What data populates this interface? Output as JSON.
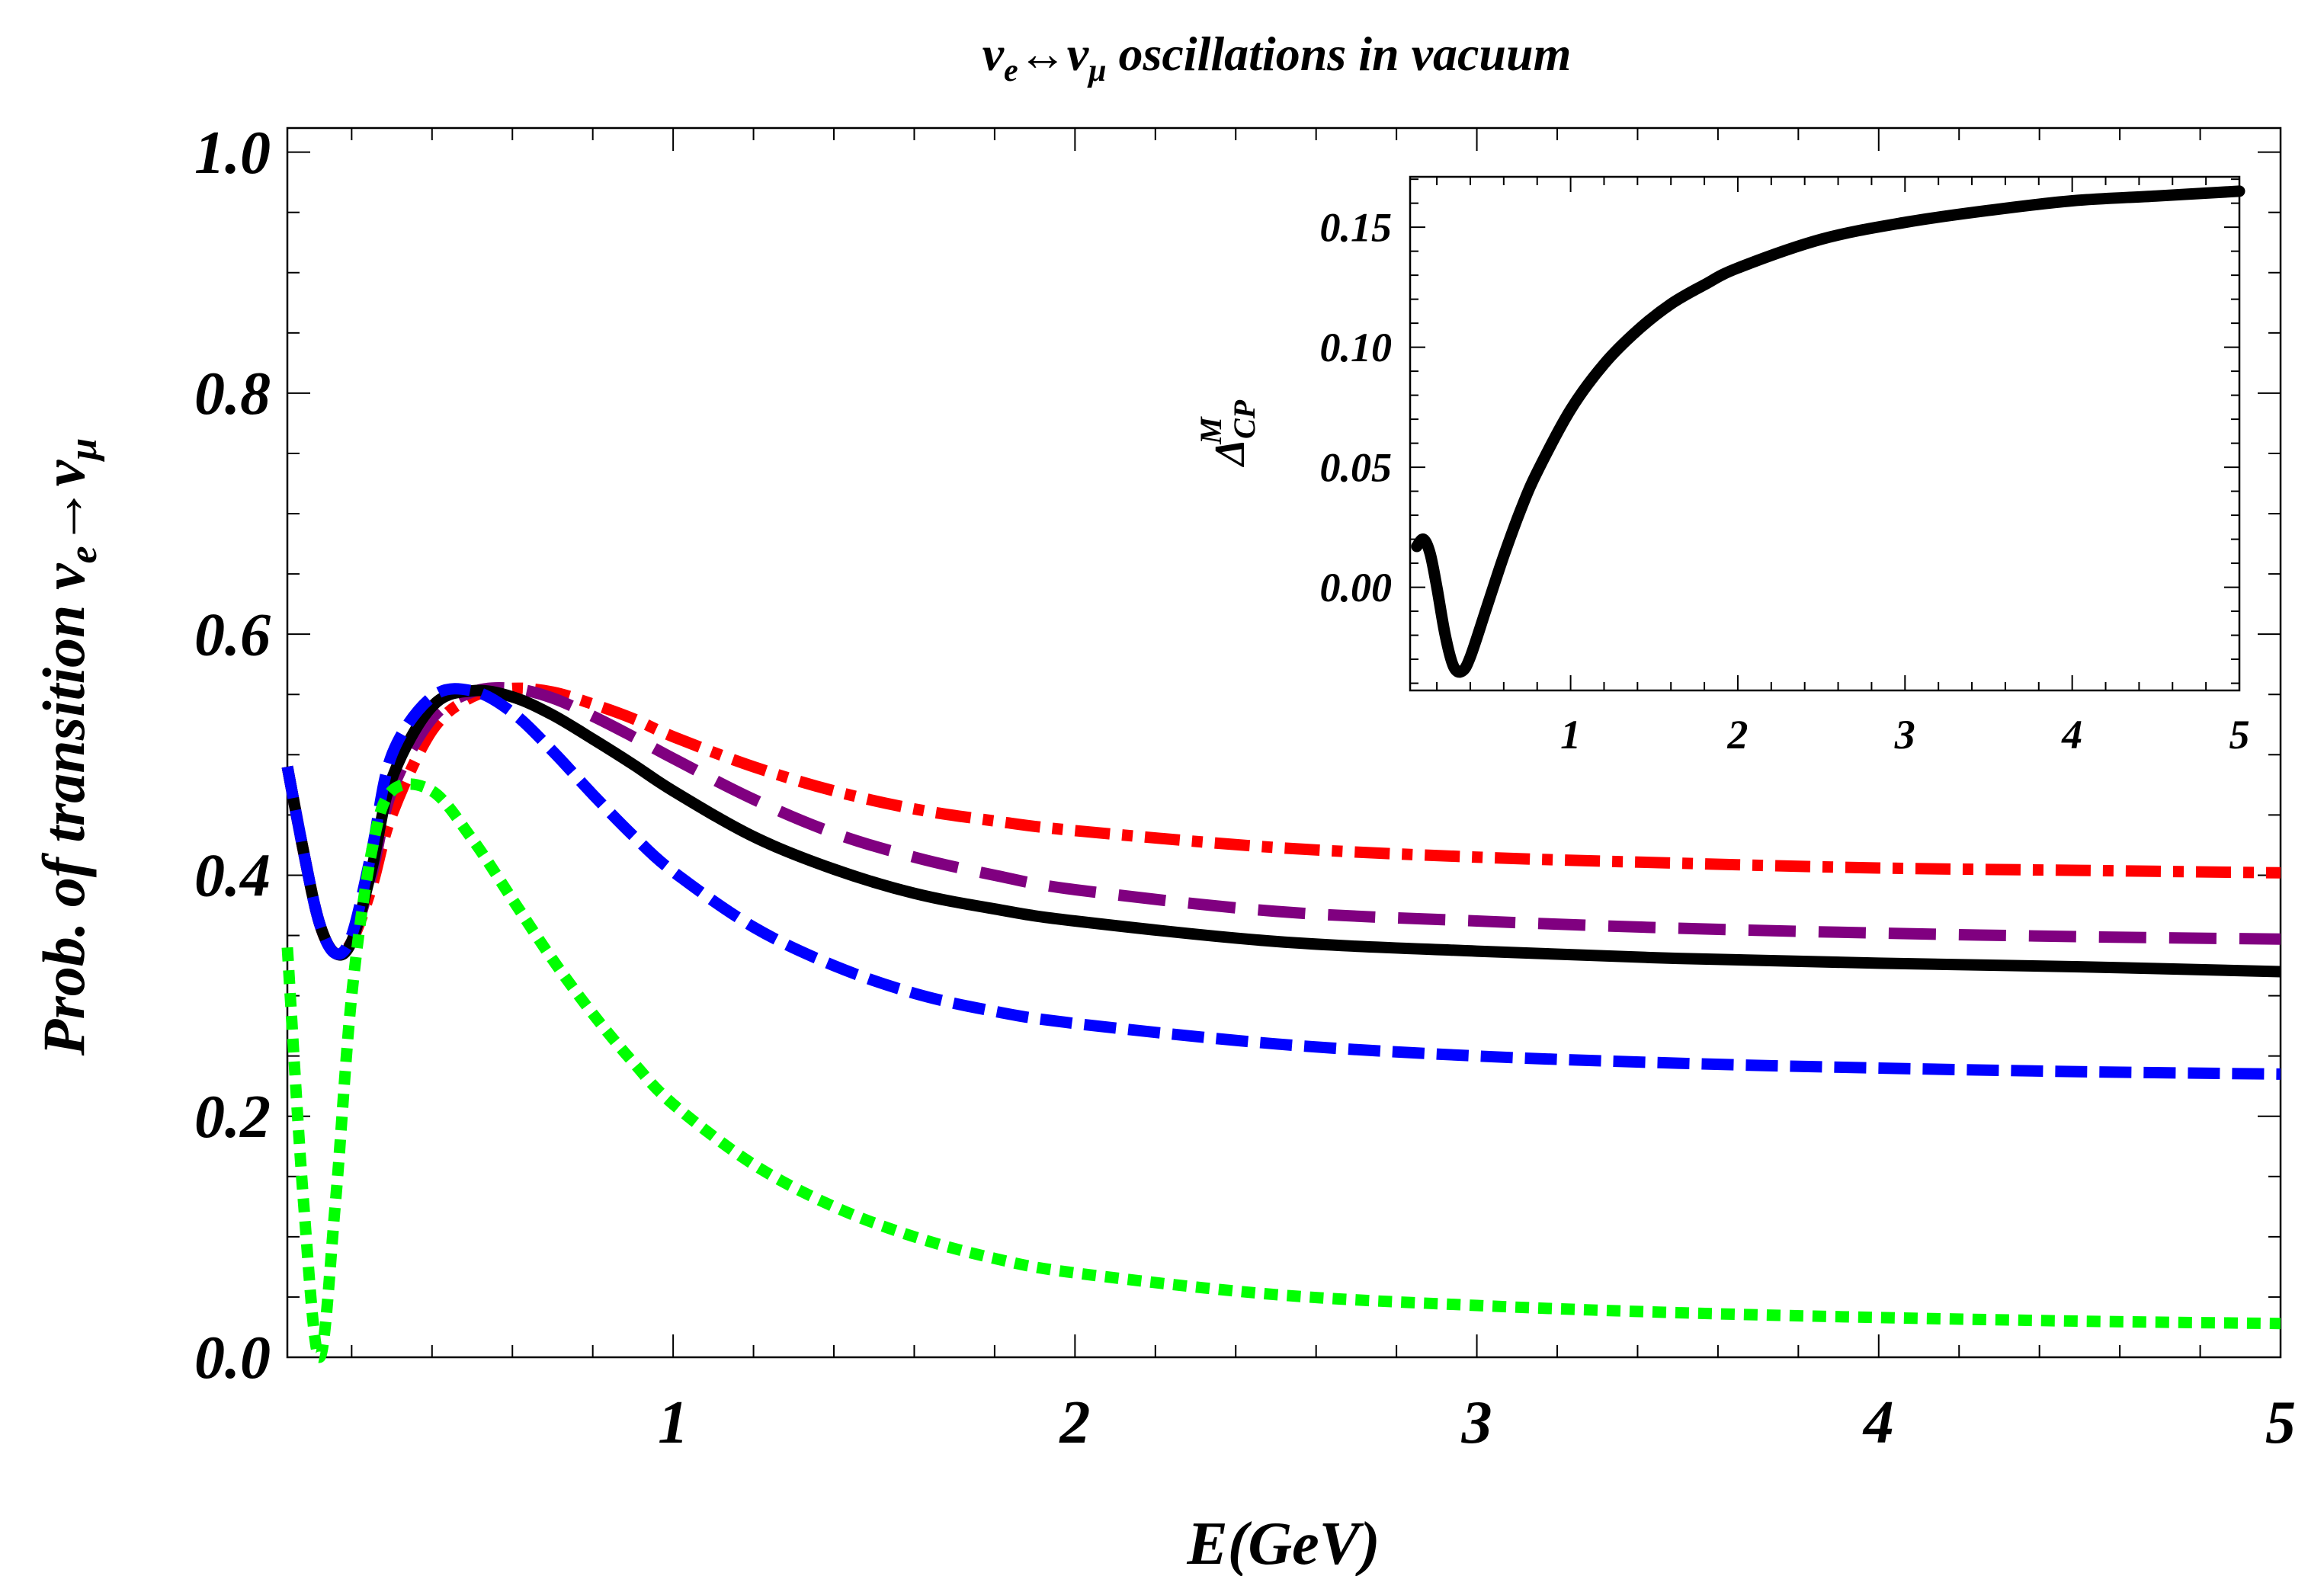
{
  "chart_data": [
    {
      "type": "line",
      "title": "ν_e↔ν_μ oscillations in vacuum",
      "xlabel": "E(GeV)",
      "ylabel": "Prob. of transition ν_e→ν_μ",
      "xlim": [
        0.04,
        5
      ],
      "ylim": [
        0,
        1.02
      ],
      "xticks": [
        "1",
        "2",
        "3",
        "4",
        "5"
      ],
      "xtick_values": [
        1,
        2,
        3,
        4,
        5
      ],
      "yticks": [
        "0.0",
        "0.2",
        "0.4",
        "0.6",
        "0.8",
        "1.0"
      ],
      "ytick_values": [
        0,
        0.2,
        0.4,
        0.6,
        0.8,
        1.0
      ],
      "grid": false,
      "legend": "none",
      "x": [
        0.04,
        0.08,
        0.12,
        0.16,
        0.2,
        0.25,
        0.3,
        0.4,
        0.5,
        0.6,
        0.7,
        0.8,
        0.9,
        1.0,
        1.2,
        1.4,
        1.6,
        1.8,
        2.0,
        2.5,
        3.0,
        3.5,
        4.0,
        4.5,
        5.0
      ],
      "series": [
        {
          "name": "red dash-dot",
          "color": "#ff0000",
          "dash": "46 16 14 16",
          "values": [
            0.49,
            0.42,
            0.36,
            0.335,
            0.345,
            0.39,
            0.45,
            0.52,
            0.548,
            0.555,
            0.552,
            0.542,
            0.53,
            0.515,
            0.49,
            0.47,
            0.455,
            0.445,
            0.437,
            0.423,
            0.415,
            0.41,
            0.406,
            0.404,
            0.402
          ]
        },
        {
          "name": "purple long dash",
          "color": "#800080",
          "dash": "62 30",
          "values": [
            0.49,
            0.42,
            0.36,
            0.335,
            0.345,
            0.4,
            0.47,
            0.53,
            0.552,
            0.555,
            0.547,
            0.532,
            0.515,
            0.497,
            0.463,
            0.435,
            0.415,
            0.4,
            0.388,
            0.37,
            0.362,
            0.356,
            0.352,
            0.349,
            0.347
          ]
        },
        {
          "name": "black solid",
          "color": "#000000",
          "dash": "",
          "values": [
            0.49,
            0.42,
            0.36,
            0.335,
            0.345,
            0.405,
            0.48,
            0.54,
            0.553,
            0.548,
            0.533,
            0.513,
            0.492,
            0.47,
            0.432,
            0.405,
            0.385,
            0.372,
            0.362,
            0.345,
            0.337,
            0.331,
            0.327,
            0.324,
            0.32
          ]
        },
        {
          "name": "blue dashed",
          "color": "#0000ff",
          "dash": "42 16",
          "values": [
            0.49,
            0.42,
            0.36,
            0.335,
            0.35,
            0.42,
            0.5,
            0.548,
            0.553,
            0.535,
            0.503,
            0.467,
            0.433,
            0.403,
            0.357,
            0.325,
            0.302,
            0.287,
            0.277,
            0.26,
            0.25,
            0.244,
            0.24,
            0.237,
            0.235
          ]
        },
        {
          "name": "green dotted",
          "color": "#00ff00",
          "dash": "18 12",
          "values": [
            0.34,
            0.13,
            0.0,
            0.13,
            0.3,
            0.42,
            0.47,
            0.47,
            0.43,
            0.38,
            0.33,
            0.285,
            0.245,
            0.21,
            0.16,
            0.125,
            0.1,
            0.082,
            0.07,
            0.052,
            0.043,
            0.037,
            0.033,
            0.03,
            0.028
          ]
        }
      ]
    },
    {
      "type": "line",
      "title": "",
      "xlabel": "",
      "ylabel": "Δ_CP^M",
      "xlim": [
        0.04,
        5
      ],
      "ylim": [
        -0.043,
        0.171
      ],
      "xticks": [
        "1",
        "2",
        "3",
        "4",
        "5"
      ],
      "xtick_values": [
        1,
        2,
        3,
        4,
        5
      ],
      "yticks": [
        "0.00",
        "0.05",
        "0.10",
        "0.15"
      ],
      "ytick_values": [
        0,
        0.05,
        0.1,
        0.15
      ],
      "grid": false,
      "legend": "none",
      "x": [
        0.08,
        0.12,
        0.16,
        0.2,
        0.25,
        0.3,
        0.35,
        0.4,
        0.5,
        0.6,
        0.7,
        0.8,
        1.0,
        1.2,
        1.4,
        1.6,
        1.8,
        2.0,
        2.5,
        3.0,
        3.5,
        4.0,
        4.5,
        5.0
      ],
      "series": [
        {
          "name": "Δ_CP^M",
          "color": "#000000",
          "dash": "",
          "values": [
            0.017,
            0.02,
            0.014,
            0.0,
            -0.02,
            -0.033,
            -0.035,
            -0.029,
            -0.008,
            0.013,
            0.032,
            0.048,
            0.074,
            0.093,
            0.107,
            0.118,
            0.126,
            0.133,
            0.145,
            0.152,
            0.157,
            0.161,
            0.163,
            0.165
          ]
        }
      ]
    }
  ]
}
